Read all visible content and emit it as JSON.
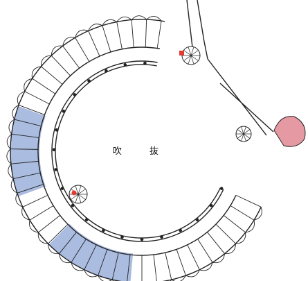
{
  "plan": {
    "center_label": "吹 抜",
    "colors": {
      "line": "#222222",
      "highlight_blue": "#aabcdf",
      "highlight_red": "#e59aa3",
      "marker": "#e33b2e",
      "background": "#ffffff"
    },
    "marker_names": [
      "marker-upper",
      "marker-lower-left"
    ]
  }
}
